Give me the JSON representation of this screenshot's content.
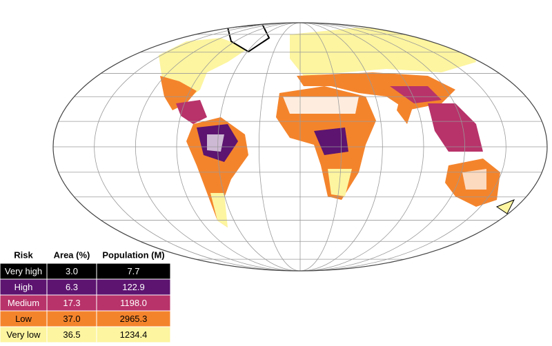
{
  "legend_table": {
    "header": [
      "Risk",
      "Area (%)",
      "Population (M)"
    ],
    "rows": [
      {
        "cells": [
          "Very high",
          "3.0",
          "7.7"
        ],
        "color": "#000000",
        "text_color": "#ffffff"
      },
      {
        "cells": [
          "High",
          "6.3",
          "122.9"
        ],
        "color": "#5c1470",
        "text_color": "#ffffff"
      },
      {
        "cells": [
          "Medium",
          "17.3",
          "1198.0"
        ],
        "color": "#b8336a",
        "text_color": "#ffffff"
      },
      {
        "cells": [
          "Low",
          "37.0",
          "2965.3"
        ],
        "color": "#f4842c",
        "text_color": "#000000"
      },
      {
        "cells": [
          "Very low",
          "36.5",
          "1234.4"
        ],
        "color": "#fdf5a0",
        "text_color": "#000000"
      }
    ]
  }
}
